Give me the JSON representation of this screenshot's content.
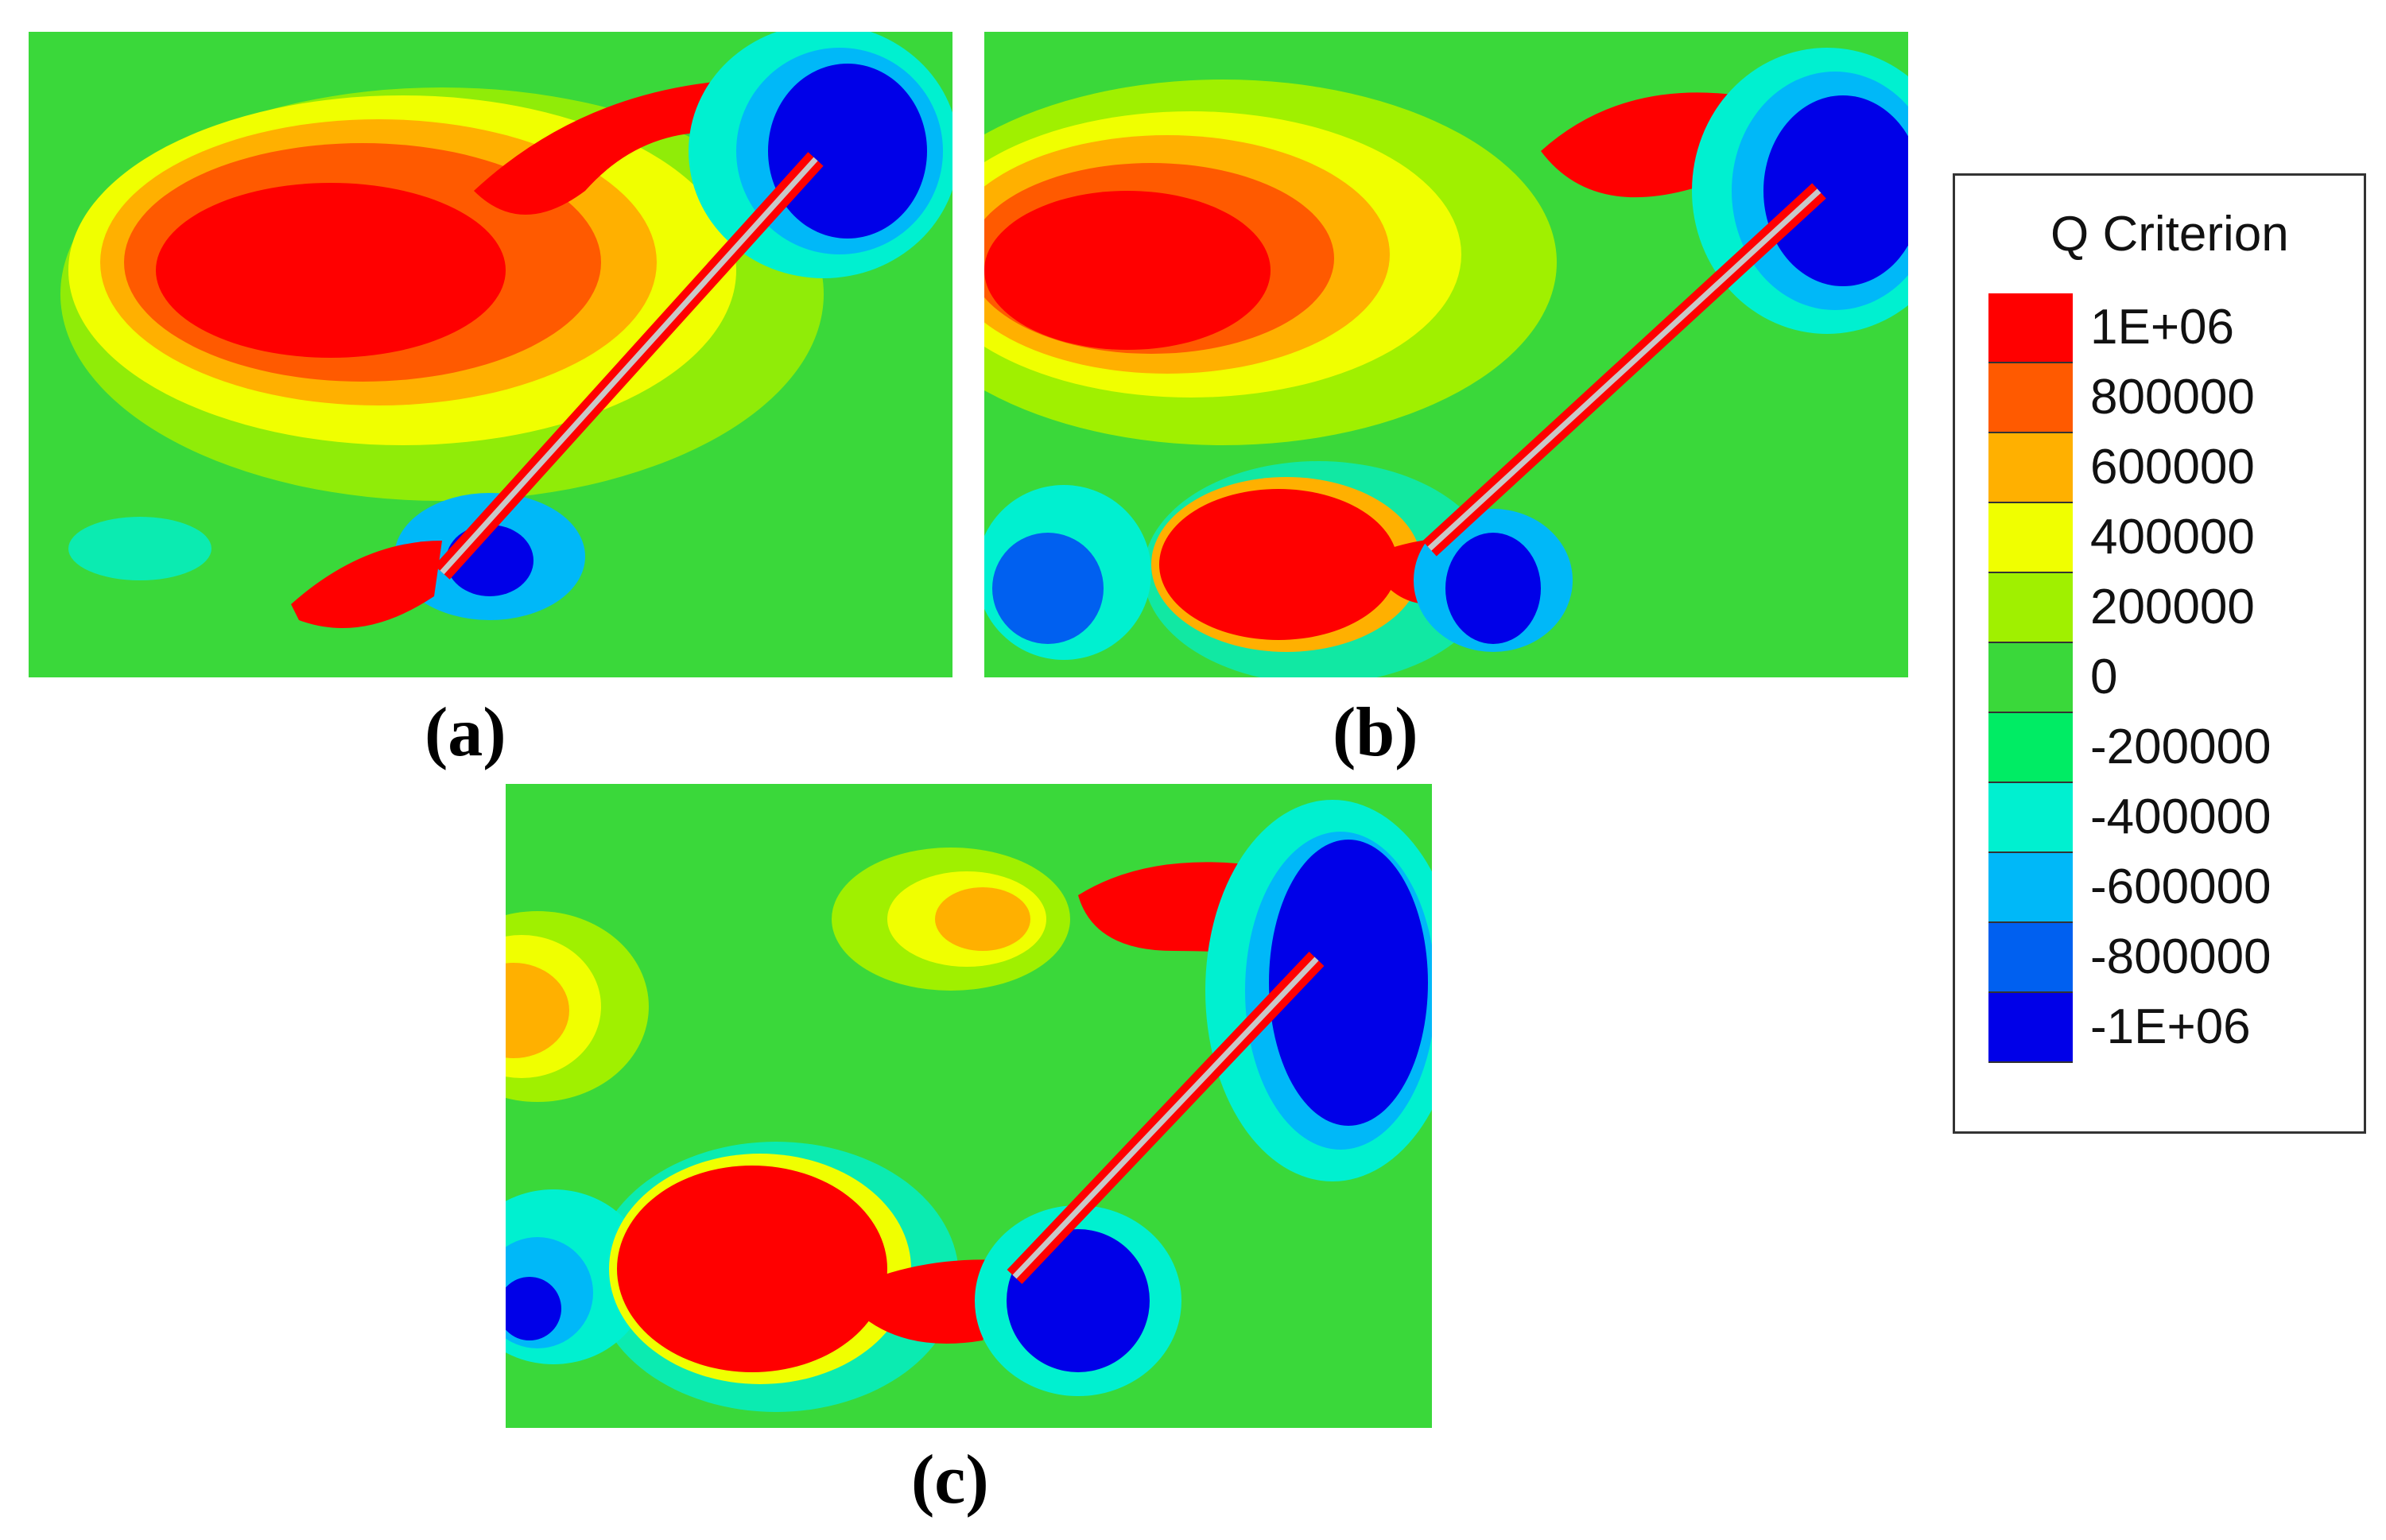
{
  "captions": {
    "a": "(a)",
    "b": "(b)",
    "c": "(c)"
  },
  "legend": {
    "title": "Q Criterion",
    "ticks": [
      "1E+06",
      "800000",
      "600000",
      "400000",
      "200000",
      "0",
      "-200000",
      "-400000",
      "-600000",
      "-800000",
      "-1E+06"
    ],
    "colors": [
      "#ff0000",
      "#ff5a00",
      "#ffb000",
      "#f0ff00",
      "#a0f000",
      "#3ad83a",
      "#00ec64",
      "#00f0d0",
      "#00b8f8",
      "#0060f0",
      "#0000e8"
    ]
  }
}
